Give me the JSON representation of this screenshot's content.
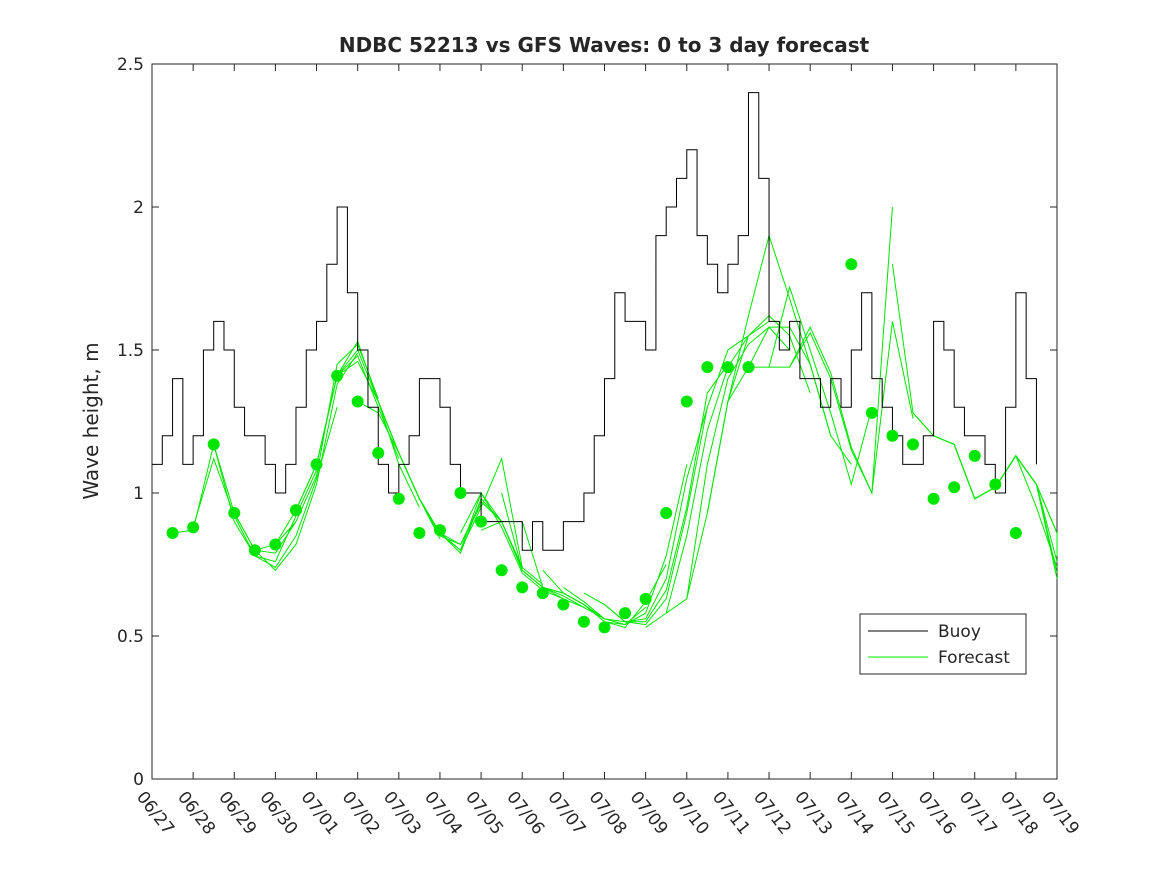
{
  "chart_data": {
    "type": "line",
    "title": "NDBC 52213 vs GFS Waves: 0 to 3 day forecast",
    "ylabel": "Wave height, m",
    "xlabel": "",
    "ylim": [
      0,
      2.5
    ],
    "yticks": [
      0,
      0.5,
      1,
      1.5,
      2,
      2.5
    ],
    "ytick_labels": [
      "0",
      "0.5",
      "1",
      "1.5",
      "2",
      "2.5"
    ],
    "xlim": [
      "06/27",
      "07/19"
    ],
    "xtick_labels": [
      "06/27",
      "06/28",
      "06/29",
      "06/30",
      "07/01",
      "07/02",
      "07/03",
      "07/04",
      "07/05",
      "07/06",
      "07/07",
      "07/08",
      "07/09",
      "07/10",
      "07/11",
      "07/12",
      "07/13",
      "07/14",
      "07/15",
      "07/16",
      "07/17",
      "07/18",
      "07/19"
    ],
    "legend": {
      "position": "bottom-right",
      "entries": [
        {
          "label": "Buoy",
          "color": "#000000"
        },
        {
          "label": "Forecast",
          "color": "#00e600"
        }
      ]
    },
    "series": [
      {
        "name": "Buoy",
        "color": "#000000",
        "style": "line",
        "x": [
          "06/27 00:00",
          "06/27 06:00",
          "06/27 12:00",
          "06/27 18:00",
          "06/28 00:00",
          "06/28 06:00",
          "06/28 12:00",
          "06/28 18:00",
          "06/29 00:00",
          "06/29 06:00",
          "06/29 12:00",
          "06/29 18:00",
          "06/30 00:00",
          "06/30 06:00",
          "06/30 12:00",
          "06/30 18:00",
          "07/01 00:00",
          "07/01 06:00",
          "07/01 12:00",
          "07/01 18:00",
          "07/02 00:00",
          "07/02 06:00",
          "07/02 12:00",
          "07/02 18:00",
          "07/03 00:00",
          "07/03 06:00",
          "07/03 12:00",
          "07/03 18:00",
          "07/04 00:00",
          "07/04 06:00",
          "07/04 12:00",
          "07/04 18:00",
          "07/05 00:00",
          "07/05 06:00",
          "07/05 12:00",
          "07/05 18:00",
          "07/06 00:00",
          "07/06 06:00",
          "07/06 12:00",
          "07/06 18:00",
          "07/07 00:00",
          "07/07 06:00",
          "07/07 12:00",
          "07/07 18:00",
          "07/08 00:00",
          "07/08 06:00",
          "07/08 12:00",
          "07/08 18:00",
          "07/09 00:00",
          "07/09 06:00",
          "07/09 12:00",
          "07/09 18:00",
          "07/10 00:00",
          "07/10 06:00",
          "07/10 12:00",
          "07/10 18:00",
          "07/11 00:00",
          "07/11 06:00",
          "07/11 12:00",
          "07/11 18:00",
          "07/12 00:00",
          "07/12 06:00",
          "07/12 12:00",
          "07/12 18:00",
          "07/13 00:00",
          "07/13 06:00",
          "07/13 12:00",
          "07/13 18:00",
          "07/14 00:00",
          "07/14 06:00",
          "07/14 12:00",
          "07/14 18:00",
          "07/15 00:00",
          "07/15 06:00",
          "07/15 12:00",
          "07/15 18:00",
          "07/16 00:00",
          "07/16 06:00",
          "07/16 12:00",
          "07/16 18:00",
          "07/17 00:00",
          "07/17 06:00",
          "07/17 12:00",
          "07/17 18:00",
          "07/18 00:00",
          "07/18 06:00",
          "07/18 12:00"
        ],
        "y": [
          1.1,
          1.2,
          1.4,
          1.1,
          1.2,
          1.5,
          1.6,
          1.5,
          1.3,
          1.2,
          1.2,
          1.1,
          1.0,
          1.1,
          1.3,
          1.5,
          1.6,
          1.8,
          2.0,
          1.7,
          1.5,
          1.3,
          1.1,
          1.0,
          1.1,
          1.2,
          1.4,
          1.4,
          1.3,
          1.1,
          1.0,
          1.0,
          0.9,
          0.9,
          0.9,
          0.9,
          0.8,
          0.9,
          0.8,
          0.8,
          0.9,
          0.9,
          1.0,
          1.2,
          1.4,
          1.7,
          1.6,
          1.6,
          1.5,
          1.9,
          2.0,
          2.1,
          2.2,
          1.9,
          1.8,
          1.7,
          1.8,
          1.9,
          2.4,
          2.1,
          1.6,
          1.5,
          1.6,
          1.4,
          1.4,
          1.3,
          1.4,
          1.3,
          1.5,
          1.7,
          1.4,
          1.3,
          1.2,
          1.1,
          1.1,
          1.2,
          1.6,
          1.5,
          1.3,
          1.2,
          1.2,
          1.1,
          1.0,
          1.3,
          1.7,
          1.4,
          1.1
        ]
      },
      {
        "name": "Forecast",
        "color": "#00e600",
        "style": "markers",
        "x": [
          "06/27 12:00",
          "06/28 00:00",
          "06/28 12:00",
          "06/29 00:00",
          "06/29 12:00",
          "06/30 00:00",
          "06/30 12:00",
          "07/01 00:00",
          "07/01 12:00",
          "07/02 00:00",
          "07/02 12:00",
          "07/03 00:00",
          "07/03 12:00",
          "07/04 00:00",
          "07/04 12:00",
          "07/05 00:00",
          "07/05 12:00",
          "07/06 00:00",
          "07/06 12:00",
          "07/07 00:00",
          "07/07 12:00",
          "07/08 00:00",
          "07/08 12:00",
          "07/09 00:00",
          "07/09 12:00",
          "07/10 00:00",
          "07/10 12:00",
          "07/11 00:00",
          "07/11 12:00",
          "07/12 00:00",
          "07/13 00:00",
          "07/13 12:00",
          "07/14 00:00",
          "07/14 12:00",
          "07/15 00:00",
          "07/15 12:00",
          "07/16 00:00",
          "07/16 12:00",
          "07/17 00:00",
          "07/17 12:00",
          "07/18 00:00"
        ],
        "y": [
          0.86,
          0.88,
          1.17,
          0.93,
          0.8,
          0.82,
          0.94,
          1.1,
          1.41,
          1.32,
          1.14,
          0.98,
          0.86,
          0.87,
          1.0,
          0.9,
          0.73,
          0.67,
          0.65,
          0.61,
          0.55,
          0.53,
          0.58,
          0.63,
          0.93,
          1.32,
          1.44,
          1.44,
          1.44,
          null,
          null,
          null,
          1.8,
          1.28,
          1.2,
          1.17,
          0.98,
          1.02,
          1.13,
          1.03,
          0.86
        ]
      }
    ],
    "forecast_runs": [
      {
        "x": [
          0.5,
          1.0,
          1.5,
          2.0,
          2.5,
          3.0,
          3.5
        ],
        "y": [
          0.86,
          0.87,
          1.17,
          0.93,
          0.8,
          0.79,
          0.9
        ]
      },
      {
        "x": [
          1.0,
          1.5,
          2.0,
          2.5,
          3.0,
          3.5,
          4.0
        ],
        "y": [
          0.88,
          1.12,
          0.92,
          0.78,
          0.76,
          0.92,
          1.08
        ]
      },
      {
        "x": [
          1.5,
          2.0,
          2.5,
          3.0,
          3.5,
          4.0,
          4.5
        ],
        "y": [
          1.17,
          0.9,
          0.78,
          0.74,
          0.85,
          1.05,
          1.3
        ]
      },
      {
        "x": [
          2.0,
          2.5,
          3.0,
          3.5,
          4.0,
          4.5,
          5.0
        ],
        "y": [
          0.93,
          0.8,
          0.73,
          0.82,
          1.03,
          1.38,
          1.49
        ]
      },
      {
        "x": [
          2.5,
          3.0,
          3.5,
          4.0,
          4.5,
          5.0,
          5.5
        ],
        "y": [
          0.8,
          0.82,
          0.9,
          1.06,
          1.45,
          1.52,
          1.33
        ]
      },
      {
        "x": [
          3.0,
          3.5,
          4.0,
          4.5,
          5.0,
          5.5,
          6.0
        ],
        "y": [
          0.82,
          0.94,
          1.1,
          1.41,
          1.48,
          1.3,
          1.12
        ]
      },
      {
        "x": [
          3.5,
          4.0,
          4.5,
          5.0,
          5.5,
          6.0,
          6.5
        ],
        "y": [
          0.94,
          1.1,
          1.41,
          1.53,
          1.32,
          1.1,
          0.95
        ]
      },
      {
        "x": [
          4.0,
          4.5,
          5.0,
          5.5,
          6.0,
          6.5,
          7.0
        ],
        "y": [
          1.1,
          1.41,
          1.5,
          1.32,
          1.14,
          0.98,
          0.84
        ]
      },
      {
        "x": [
          4.5,
          5.0,
          5.5,
          6.0,
          6.5,
          7.0,
          7.5
        ],
        "y": [
          1.41,
          1.46,
          1.32,
          1.14,
          0.98,
          0.86,
          0.8
        ]
      },
      {
        "x": [
          5.0,
          5.5,
          6.0,
          6.5,
          7.0,
          7.5,
          8.0
        ],
        "y": [
          1.32,
          1.28,
          1.14,
          0.98,
          0.85,
          0.82,
          0.96
        ]
      },
      {
        "x": [
          5.5,
          6.0,
          6.5,
          7.0,
          7.5,
          8.0,
          8.5
        ],
        "y": [
          1.32,
          1.14,
          0.98,
          0.86,
          0.8,
          1.0,
          0.9
        ]
      },
      {
        "x": [
          6.0,
          6.5,
          7.0,
          7.5,
          8.0,
          8.5,
          9.0
        ],
        "y": [
          1.14,
          0.98,
          0.86,
          0.79,
          0.98,
          0.9,
          0.74
        ]
      },
      {
        "x": [
          6.5,
          7.0,
          7.5,
          8.0,
          8.5,
          9.0,
          9.5
        ],
        "y": [
          0.98,
          0.86,
          0.8,
          0.95,
          1.12,
          0.74,
          0.68
        ]
      },
      {
        "x": [
          7.0,
          7.5,
          8.0,
          8.5,
          9.0,
          9.5,
          10.0
        ],
        "y": [
          0.86,
          0.82,
          0.97,
          0.9,
          0.73,
          0.67,
          0.63
        ]
      },
      {
        "x": [
          7.5,
          8.0,
          8.5,
          9.0,
          9.5,
          10.0,
          10.5
        ],
        "y": [
          0.86,
          1.0,
          0.88,
          0.72,
          0.66,
          0.63,
          0.6
        ]
      },
      {
        "x": [
          8.0,
          8.5,
          9.0,
          9.5,
          10.0,
          10.5,
          11.0
        ],
        "y": [
          0.87,
          0.9,
          0.73,
          0.67,
          0.64,
          0.6,
          0.56
        ]
      },
      {
        "x": [
          8.5,
          9.0,
          9.5,
          10.0,
          10.5,
          11.0,
          11.5
        ],
        "y": [
          1.0,
          0.73,
          0.67,
          0.65,
          0.61,
          0.56,
          0.55
        ]
      },
      {
        "x": [
          9.0,
          9.5,
          10.0,
          10.5,
          11.0,
          11.5,
          12.0
        ],
        "y": [
          0.9,
          0.67,
          0.65,
          0.61,
          0.55,
          0.54,
          0.6
        ]
      },
      {
        "x": [
          9.5,
          10.0,
          10.5,
          11.0,
          11.5,
          12.0,
          12.5
        ],
        "y": [
          0.73,
          0.65,
          0.61,
          0.55,
          0.53,
          0.62,
          0.75
        ]
      },
      {
        "x": [
          10.0,
          10.5,
          11.0,
          11.5,
          12.0,
          12.5,
          13.0
        ],
        "y": [
          0.67,
          0.62,
          0.56,
          0.54,
          0.58,
          0.78,
          1.1
        ]
      },
      {
        "x": [
          10.5,
          11.0,
          11.5,
          12.0,
          12.5,
          13.0,
          13.5
        ],
        "y": [
          0.65,
          0.61,
          0.55,
          0.56,
          0.7,
          1.05,
          1.3
        ]
      },
      {
        "x": [
          11.0,
          11.5,
          12.0,
          12.5,
          13.0,
          13.5,
          14.0
        ],
        "y": [
          0.61,
          0.55,
          0.55,
          0.66,
          0.95,
          1.35,
          1.45
        ]
      },
      {
        "x": [
          11.5,
          12.0,
          12.5,
          13.0,
          13.5,
          14.0,
          14.5
        ],
        "y": [
          0.55,
          0.54,
          0.63,
          0.93,
          1.3,
          1.5,
          1.55
        ]
      },
      {
        "x": [
          12.0,
          12.5,
          13.0,
          13.5,
          14.0,
          14.5,
          15.0
        ],
        "y": [
          0.53,
          0.58,
          0.85,
          1.22,
          1.44,
          1.55,
          1.6
        ]
      },
      {
        "x": [
          12.5,
          13.0,
          13.5,
          14.0,
          14.5,
          15.0,
          15.5
        ],
        "y": [
          0.58,
          0.63,
          1.1,
          1.4,
          1.52,
          1.58,
          1.5
        ]
      },
      {
        "x": [
          13.0,
          13.5,
          14.0,
          14.5,
          15.0,
          15.5,
          16.0
        ],
        "y": [
          0.63,
          0.93,
          1.32,
          1.55,
          1.62,
          1.55,
          1.35
        ]
      },
      {
        "x": [
          13.5,
          14.0,
          14.5,
          15.0,
          15.5,
          16.0,
          16.5
        ],
        "y": [
          0.93,
          1.32,
          1.62,
          1.9,
          1.68,
          1.45,
          1.2
        ]
      },
      {
        "x": [
          14.0,
          14.5,
          15.0,
          15.5,
          16.0,
          16.5,
          17.0
        ],
        "y": [
          1.32,
          1.44,
          1.58,
          1.58,
          1.45,
          1.2,
          1.1
        ]
      },
      {
        "x": [
          14.5,
          15.0,
          15.5,
          16.0,
          16.5,
          17.0,
          17.5
        ],
        "y": [
          1.44,
          1.44,
          1.72,
          1.5,
          1.28,
          1.03,
          1.3
        ]
      },
      {
        "x": [
          15.0,
          15.5,
          16.0,
          16.5,
          17.0,
          17.5,
          18.0
        ],
        "y": [
          1.44,
          1.44,
          1.56,
          1.4,
          1.15,
          1.0,
          2.0
        ]
      },
      {
        "x": [
          15.5,
          16.0,
          16.5,
          17.0,
          17.5,
          18.0,
          18.5
        ],
        "y": [
          1.44,
          1.58,
          1.42,
          1.16,
          1.0,
          1.6,
          1.26
        ]
      },
      {
        "x": [
          18.0,
          18.5,
          19.0,
          19.5,
          20.0,
          20.5,
          21.0
        ],
        "y": [
          1.8,
          1.28,
          1.2,
          1.17,
          0.98,
          1.02,
          1.13
        ]
      },
      {
        "x": [
          18.5,
          19.0,
          19.5,
          20.0,
          20.5,
          21.0,
          21.5
        ],
        "y": [
          1.28,
          1.2,
          1.17,
          0.98,
          1.02,
          1.13,
          1.03
        ]
      },
      {
        "x": [
          19.0,
          19.5,
          20.0,
          20.5,
          21.0,
          21.5,
          22.0
        ],
        "y": [
          1.2,
          1.17,
          0.98,
          1.02,
          1.13,
          1.03,
          0.86
        ]
      },
      {
        "x": [
          19.5,
          20.0,
          20.5,
          21.0,
          21.5,
          22.0,
          22.0
        ],
        "y": [
          1.17,
          0.98,
          1.02,
          1.13,
          1.03,
          0.86,
          0.78
        ]
      },
      {
        "x": [
          20.0,
          20.5,
          21.0,
          21.5,
          22.0
        ],
        "y": [
          0.98,
          1.02,
          1.13,
          1.03,
          0.72
        ]
      },
      {
        "x": [
          20.5,
          21.0,
          21.5,
          22.0
        ],
        "y": [
          1.02,
          1.13,
          1.03,
          0.76
        ]
      },
      {
        "x": [
          21.0,
          21.5,
          22.0
        ],
        "y": [
          1.13,
          0.95,
          0.74
        ]
      },
      {
        "x": [
          21.5,
          22.0
        ],
        "y": [
          1.03,
          0.7
        ]
      }
    ]
  }
}
